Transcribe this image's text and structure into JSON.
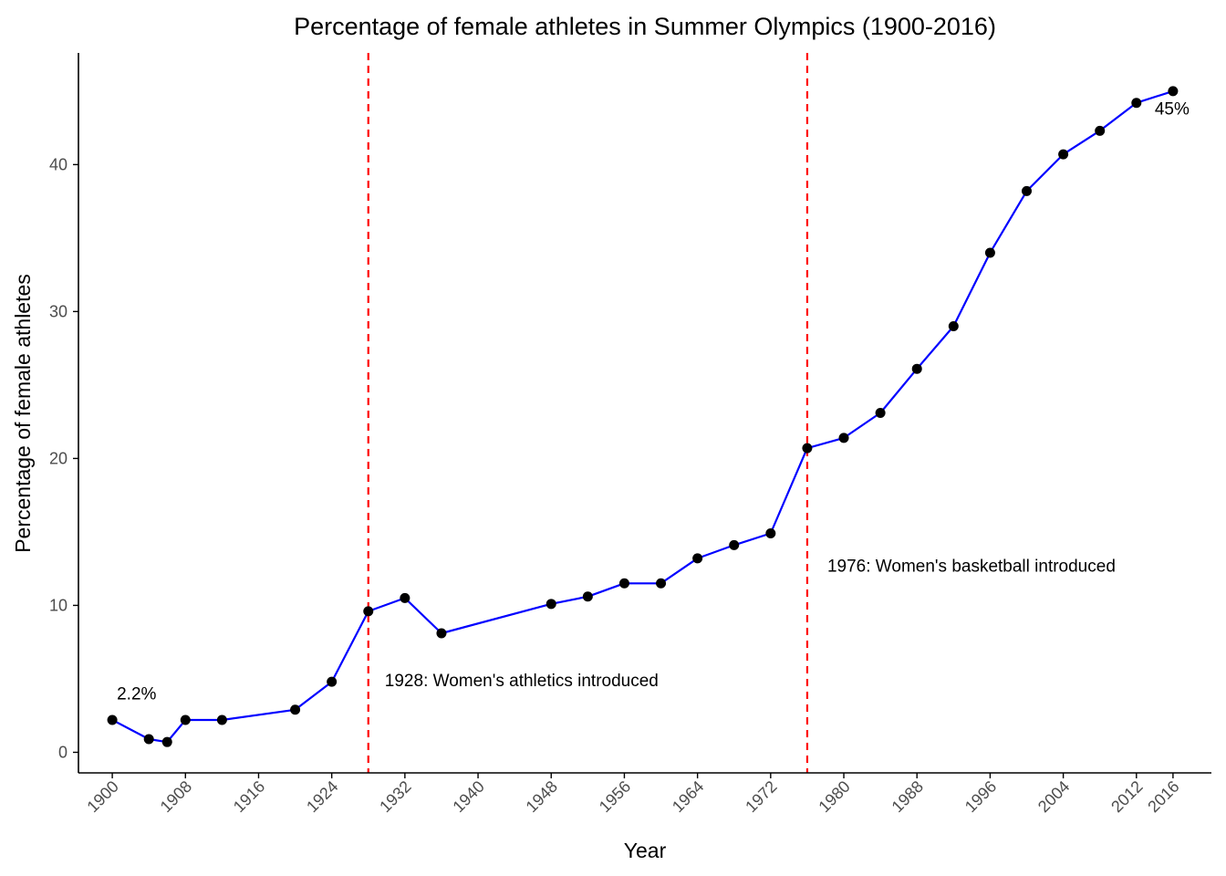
{
  "chart_data": {
    "type": "line",
    "title": "Percentage of female athletes in Summer Olympics (1900-2016)",
    "xlabel": "Year",
    "ylabel": "Percentage of female athletes",
    "xlim": [
      1896.3,
      2020.2
    ],
    "ylim": [
      -1.4,
      47.6
    ],
    "x_ticks": [
      1900,
      1908,
      1916,
      1924,
      1932,
      1940,
      1948,
      1956,
      1964,
      1972,
      1980,
      1988,
      1996,
      2004,
      2012,
      2016
    ],
    "y_ticks": [
      0,
      10,
      20,
      30,
      40
    ],
    "grid": false,
    "legend": "none",
    "series": [
      {
        "x": [
          1900,
          1904,
          1906,
          1908,
          1912,
          1920,
          1924,
          1928,
          1932,
          1936,
          1948,
          1952,
          1956,
          1960,
          1964,
          1968,
          1972,
          1976,
          1980,
          1984,
          1988,
          1992,
          1996,
          2000,
          2004,
          2008,
          2012,
          2016
        ],
        "y": [
          2.2,
          0.9,
          0.7,
          2.2,
          2.2,
          2.9,
          4.8,
          9.6,
          10.5,
          8.1,
          10.1,
          10.6,
          11.5,
          11.5,
          13.2,
          14.1,
          14.9,
          20.7,
          21.4,
          23.1,
          26.1,
          29.0,
          34.0,
          38.2,
          40.7,
          42.3,
          44.2,
          45.0
        ]
      }
    ],
    "vlines": [
      {
        "x": 1928,
        "label": "1928: Women's athletics introduced",
        "label_x": 1929.8,
        "label_y": 4.5
      },
      {
        "x": 1976,
        "label": "1976: Women's basketball introduced",
        "label_x": 1978.2,
        "label_y": 12.3
      }
    ],
    "point_labels": [
      {
        "text": "2.2%",
        "x": 1900.5,
        "y": 3.6
      },
      {
        "text": "45%",
        "x": 2014.0,
        "y": 43.4
      }
    ],
    "colors": {
      "line": "#0000ff",
      "points": "#000000",
      "vline": "#ff0000",
      "axis": "#000000"
    }
  }
}
